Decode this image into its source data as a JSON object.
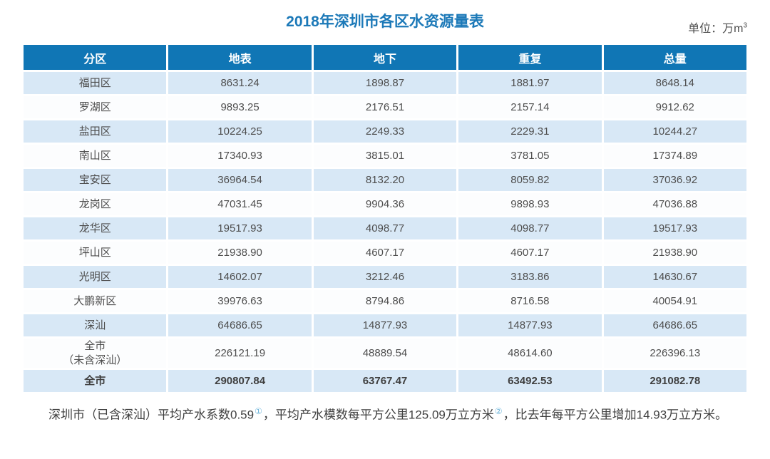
{
  "title": "2018年深圳市各区水资源量表",
  "unit": {
    "text": "单位：万m",
    "superscript": "3"
  },
  "chart_data": {
    "type": "table",
    "title": "2018年深圳市各区水资源量表",
    "unit": "万m³",
    "columns": [
      "分区",
      "地表",
      "地下",
      "重复",
      "总量"
    ],
    "rows": [
      {
        "name": "福田区",
        "values": [
          "8631.24",
          "1898.87",
          "1881.97",
          "8648.14"
        ]
      },
      {
        "name": "罗湖区",
        "values": [
          "9893.25",
          "2176.51",
          "2157.14",
          "9912.62"
        ]
      },
      {
        "name": "盐田区",
        "values": [
          "10224.25",
          "2249.33",
          "2229.31",
          "10244.27"
        ]
      },
      {
        "name": "南山区",
        "values": [
          "17340.93",
          "3815.01",
          "3781.05",
          "17374.89"
        ]
      },
      {
        "name": "宝安区",
        "values": [
          "36964.54",
          "8132.20",
          "8059.82",
          "37036.92"
        ]
      },
      {
        "name": "龙岗区",
        "values": [
          "47031.45",
          "9904.36",
          "9898.93",
          "47036.88"
        ]
      },
      {
        "name": "龙华区",
        "values": [
          "19517.93",
          "4098.77",
          "4098.77",
          "19517.93"
        ]
      },
      {
        "name": "坪山区",
        "values": [
          "21938.90",
          "4607.17",
          "4607.17",
          "21938.90"
        ]
      },
      {
        "name": "光明区",
        "values": [
          "14602.07",
          "3212.46",
          "3183.86",
          "14630.67"
        ]
      },
      {
        "name": "大鹏新区",
        "values": [
          "39976.63",
          "8794.86",
          "8716.58",
          "40054.91"
        ]
      },
      {
        "name": "深汕",
        "values": [
          "64686.65",
          "14877.93",
          "14877.93",
          "64686.65"
        ]
      },
      {
        "name": "全市\n（未含深汕）",
        "values": [
          "226121.19",
          "48889.54",
          "48614.60",
          "226396.13"
        ]
      },
      {
        "name": "全市",
        "values": [
          "290807.84",
          "63767.47",
          "63492.53",
          "291082.78"
        ],
        "bold": true
      }
    ]
  },
  "footnote": {
    "segments": [
      {
        "text": "深圳市（已含深汕）平均产水系数0.59",
        "sup": false
      },
      {
        "text": "①",
        "sup": true
      },
      {
        "text": "，平均产水模数每平方公里125.09万立方米",
        "sup": false
      },
      {
        "text": "②",
        "sup": true
      },
      {
        "text": "，比去年每平方公里增加14.93万立方米。",
        "sup": false
      }
    ]
  },
  "colors": {
    "title-color": "#1c79b8",
    "header-bg": "#1076b5",
    "row-alt-bg": "#d8e8f6",
    "row-even-bg": "#fcfdfe",
    "marker-color": "#6fb5da"
  }
}
